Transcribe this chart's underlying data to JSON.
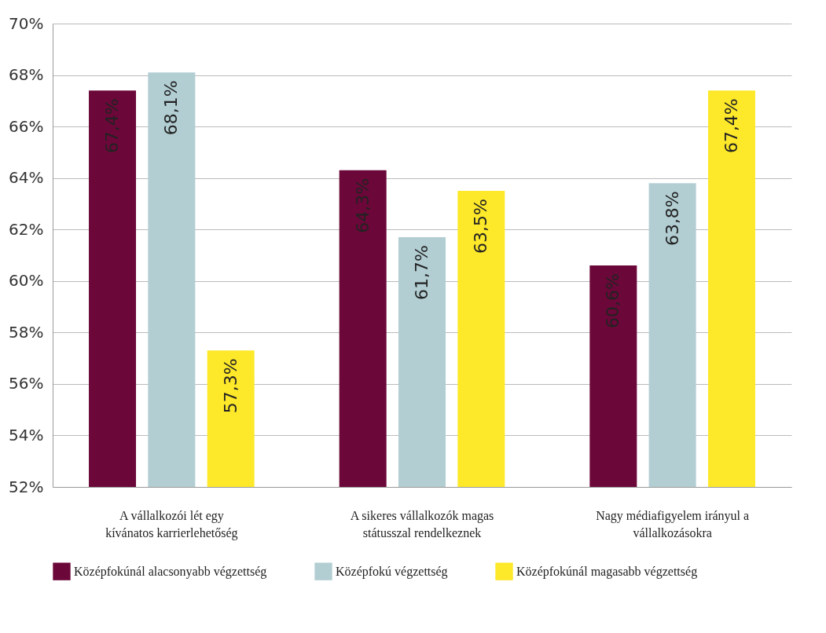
{
  "chart_data": {
    "type": "bar",
    "categories": [
      "A vállalkozói lét egy kívánatos karrierlehetőség",
      "A sikeres vállalkozók magas státusszal rendelkeznek",
      "Nagy médiafigyelem irányul a vállalkozásokra"
    ],
    "series": [
      {
        "name": "Középfokúnál alacsonyabb végzettség",
        "color": "#6b0839",
        "values": [
          67.4,
          64.3,
          60.6
        ],
        "value_labels": [
          "67,4%",
          "64,3%",
          "60,6%"
        ]
      },
      {
        "name": "Középfokú végzettség",
        "color": "#b2ced3",
        "values": [
          68.1,
          61.7,
          63.8
        ],
        "value_labels": [
          "68,1%",
          "61,7%",
          "63,8%"
        ]
      },
      {
        "name": "Középfokúnál magasabb végzettség",
        "color": "#fde82a",
        "values": [
          57.3,
          63.5,
          67.4
        ],
        "value_labels": [
          "57,3%",
          "63,5%",
          "67,4%"
        ]
      }
    ],
    "ylim": [
      52,
      70
    ],
    "yticks": [
      {
        "value": 52,
        "label": "52%"
      },
      {
        "value": 54,
        "label": "54%"
      },
      {
        "value": 56,
        "label": "56%"
      },
      {
        "value": 58,
        "label": "58%"
      },
      {
        "value": 60,
        "label": "60%"
      },
      {
        "value": 62,
        "label": "62%"
      },
      {
        "value": 64,
        "label": "64%"
      },
      {
        "value": 66,
        "label": "66%"
      },
      {
        "value": 68,
        "label": "68%"
      },
      {
        "value": 70,
        "label": "70%"
      }
    ],
    "grid": "y",
    "legend": "bottom"
  }
}
